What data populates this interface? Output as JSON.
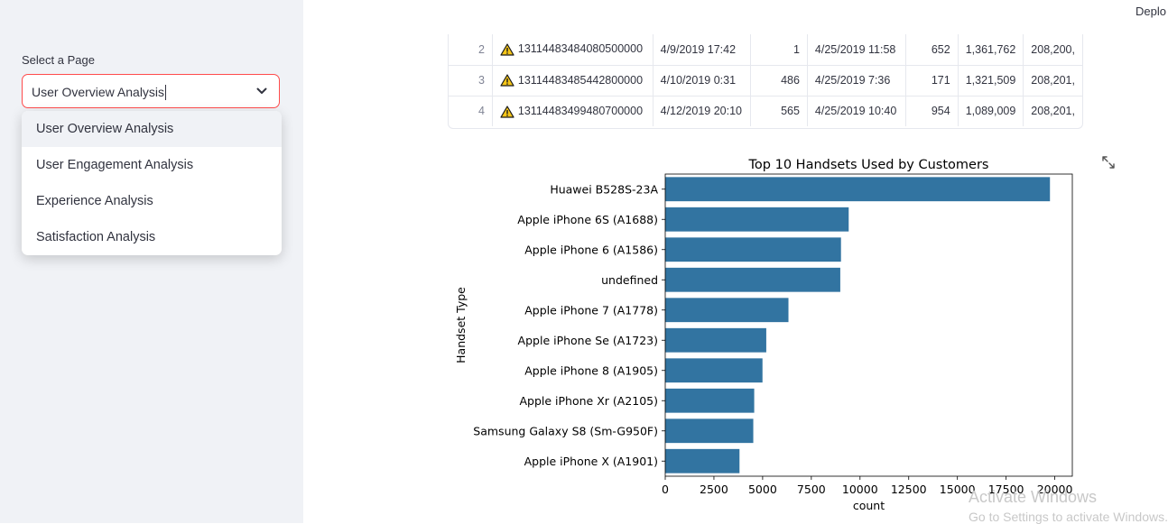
{
  "header": {
    "deploy_label": "Deplo"
  },
  "sidebar": {
    "select_label": "Select a Page",
    "selected_value": "User Overview Analysis",
    "options": [
      "User Overview Analysis",
      "User Engagement Analysis",
      "Experience Analysis",
      "Satisfaction Analysis"
    ]
  },
  "table": {
    "rows": [
      [
        "2",
        "13114483484080500000",
        "4/9/2019 17:42",
        "1",
        "4/25/2019 11:58",
        "652",
        "1,361,762",
        "208,200,"
      ],
      [
        "3",
        "13114483485442800000",
        "4/10/2019 0:31",
        "486",
        "4/25/2019 7:36",
        "171",
        "1,321,509",
        "208,201,"
      ],
      [
        "4",
        "13114483499480700000",
        "4/12/2019 20:10",
        "565",
        "4/25/2019 10:40",
        "954",
        "1,089,009",
        "208,201,"
      ]
    ]
  },
  "chart_data": {
    "type": "bar",
    "orientation": "horizontal",
    "title": "Top 10 Handsets Used by Customers",
    "xlabel": "count",
    "ylabel": "Handset Type",
    "categories": [
      "Huawei B528S-23A",
      "Apple iPhone 6S (A1688)",
      "Apple iPhone 6 (A1586)",
      "undefined",
      "Apple iPhone 7 (A1778)",
      "Apple iPhone Se (A1723)",
      "Apple iPhone 8 (A1905)",
      "Apple iPhone Xr (A2105)",
      "Samsung Galaxy S8 (Sm-G950F)",
      "Apple iPhone X (A1901)"
    ],
    "values": [
      19752,
      9419,
      9023,
      8987,
      6326,
      5187,
      4993,
      4568,
      4520,
      3813
    ],
    "xlim": [
      0,
      20900
    ],
    "xticks": [
      0,
      2500,
      5000,
      7500,
      10000,
      12500,
      15000,
      17500,
      20000
    ],
    "bar_color": "#3274a1",
    "grid": false
  },
  "watermark": {
    "line1": "Activate Windows",
    "line2": "Go to Settings to activate Windows."
  }
}
